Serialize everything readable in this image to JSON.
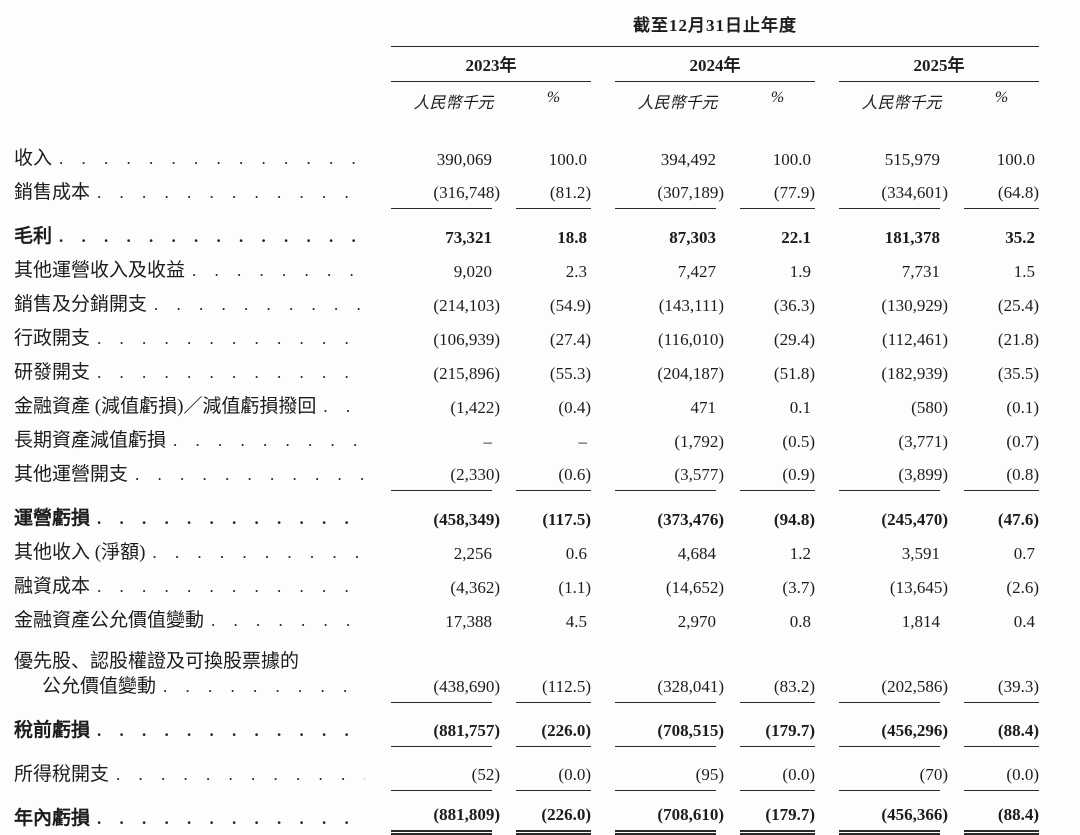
{
  "header": {
    "period_title": "截至12月31日止年度",
    "years": [
      "2023年",
      "2024年",
      "2025年"
    ],
    "unit_label": "人民幣千元",
    "percent_label": "%"
  },
  "table": {
    "rows": [
      {
        "label": "收入",
        "values": [
          "390,069",
          "100.0",
          "394,492",
          "100.0",
          "515,979",
          "100.0"
        ]
      },
      {
        "label": "銷售成本",
        "rule": true,
        "values": [
          "(316,748)",
          "(81.2)",
          "(307,189)",
          "(77.9)",
          "(334,601)",
          "(64.8)"
        ]
      },
      {
        "label": "毛利",
        "bold": true,
        "values": [
          "73,321",
          "18.8",
          "87,303",
          "22.1",
          "181,378",
          "35.2"
        ]
      },
      {
        "label": "其他運營收入及收益",
        "values": [
          "9,020",
          "2.3",
          "7,427",
          "1.9",
          "7,731",
          "1.5"
        ]
      },
      {
        "label": "銷售及分銷開支",
        "values": [
          "(214,103)",
          "(54.9)",
          "(143,111)",
          "(36.3)",
          "(130,929)",
          "(25.4)"
        ]
      },
      {
        "label": "行政開支",
        "values": [
          "(106,939)",
          "(27.4)",
          "(116,010)",
          "(29.4)",
          "(112,461)",
          "(21.8)"
        ]
      },
      {
        "label": "研發開支",
        "values": [
          "(215,896)",
          "(55.3)",
          "(204,187)",
          "(51.8)",
          "(182,939)",
          "(35.5)"
        ]
      },
      {
        "label": "金融資產 (減值虧損)／減值虧損撥回",
        "values": [
          "(1,422)",
          "(0.4)",
          "471",
          "0.1",
          "(580)",
          "(0.1)"
        ]
      },
      {
        "label": "長期資產減值虧損",
        "values": [
          "–",
          "–",
          "(1,792)",
          "(0.5)",
          "(3,771)",
          "(0.7)"
        ]
      },
      {
        "label": "其他運營開支",
        "rule": true,
        "values": [
          "(2,330)",
          "(0.6)",
          "(3,577)",
          "(0.9)",
          "(3,899)",
          "(0.8)"
        ]
      },
      {
        "label": "運營虧損",
        "bold": true,
        "values": [
          "(458,349)",
          "(117.5)",
          "(373,476)",
          "(94.8)",
          "(245,470)",
          "(47.6)"
        ]
      },
      {
        "label": "其他收入 (淨額)",
        "values": [
          "2,256",
          "0.6",
          "4,684",
          "1.2",
          "3,591",
          "0.7"
        ]
      },
      {
        "label": "融資成本",
        "values": [
          "(4,362)",
          "(1.1)",
          "(14,652)",
          "(3.7)",
          "(13,645)",
          "(2.6)"
        ]
      },
      {
        "label": "金融資產公允價值變動",
        "values": [
          "17,388",
          "4.5",
          "2,970",
          "0.8",
          "1,814",
          "0.4"
        ]
      },
      {
        "label_line1": "優先股、認股權證及可換股票據的",
        "label": "公允價值變動",
        "indent": true,
        "rule": true,
        "values": [
          "(438,690)",
          "(112.5)",
          "(328,041)",
          "(83.2)",
          "(202,586)",
          "(39.3)"
        ]
      },
      {
        "label": "稅前虧損",
        "bold": true,
        "rule": true,
        "values": [
          "(881,757)",
          "(226.0)",
          "(708,515)",
          "(179.7)",
          "(456,296)",
          "(88.4)"
        ]
      },
      {
        "label": "所得稅開支",
        "rule": true,
        "values": [
          "(52)",
          "(0.0)",
          "(95)",
          "(0.0)",
          "(70)",
          "(0.0)"
        ]
      },
      {
        "label": "年內虧損",
        "bold": true,
        "drule": true,
        "values": [
          "(881,809)",
          "(226.0)",
          "(708,610)",
          "(179.7)",
          "(456,366)",
          "(88.4)"
        ]
      }
    ]
  }
}
